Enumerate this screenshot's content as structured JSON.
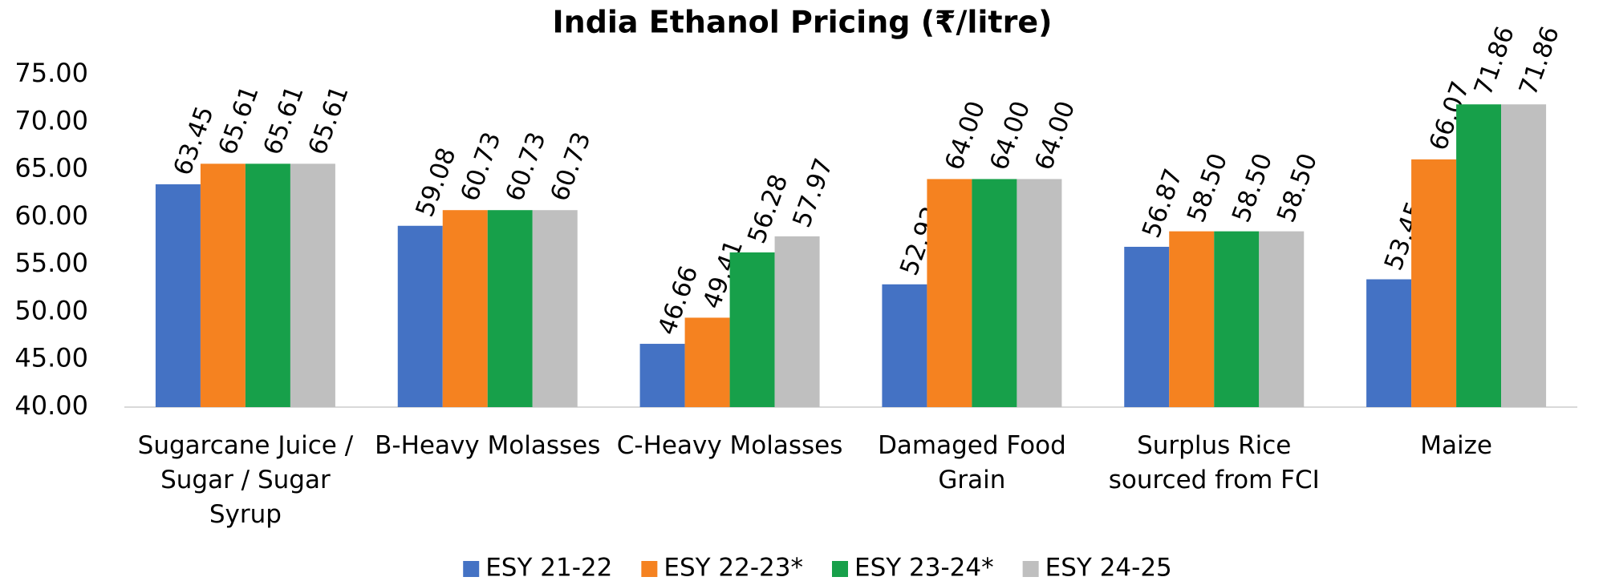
{
  "chart_data": {
    "type": "bar",
    "title": "India Ethanol Pricing (₹/litre)",
    "categories": [
      "Sugarcane Juice / Sugar / Sugar Syrup",
      "B-Heavy Molasses",
      "C-Heavy Molasses",
      "Damaged Food Grain",
      "Surplus Rice sourced from FCI",
      "Maize"
    ],
    "series": [
      {
        "name": "ESY 21-22",
        "color": "#4472c4",
        "values": [
          63.45,
          59.08,
          46.66,
          52.92,
          56.87,
          53.45
        ],
        "value_labels": [
          "63.45",
          "59.08",
          "46.66",
          "52.92",
          "56.87",
          "53.45"
        ]
      },
      {
        "name": "ESY 22-23*",
        "color": "#f58220",
        "values": [
          65.61,
          60.73,
          49.41,
          64,
          58.5,
          66.07
        ],
        "value_labels": [
          "65.61",
          "60.73",
          "49.41",
          "64.00",
          "58.50",
          "66.07"
        ]
      },
      {
        "name": "ESY 23-24*",
        "color": "#17a04a",
        "values": [
          65.61,
          60.73,
          56.28,
          64,
          58.5,
          71.86
        ],
        "value_labels": [
          "65.61",
          "60.73",
          "56.28",
          "64.00",
          "58.50",
          "71.86"
        ]
      },
      {
        "name": "ESY 24-25",
        "color": "#bfbfbf",
        "values": [
          65.61,
          60.73,
          57.97,
          64,
          58.5,
          71.86
        ],
        "value_labels": [
          "65.61",
          "60.73",
          "57.97",
          "64.00",
          "58.50",
          "71.86"
        ]
      }
    ],
    "ylim": [
      40,
      75
    ],
    "yticks": [
      {
        "value": 40,
        "label": "40.00"
      },
      {
        "value": 45,
        "label": "45.00"
      },
      {
        "value": 50,
        "label": "50.00"
      },
      {
        "value": 55,
        "label": "55.00"
      },
      {
        "value": 60,
        "label": "60.00"
      },
      {
        "value": 65,
        "label": "65.00"
      },
      {
        "value": 70,
        "label": "70.00"
      },
      {
        "value": 75,
        "label": "75.00"
      }
    ],
    "legend": "bottom"
  }
}
